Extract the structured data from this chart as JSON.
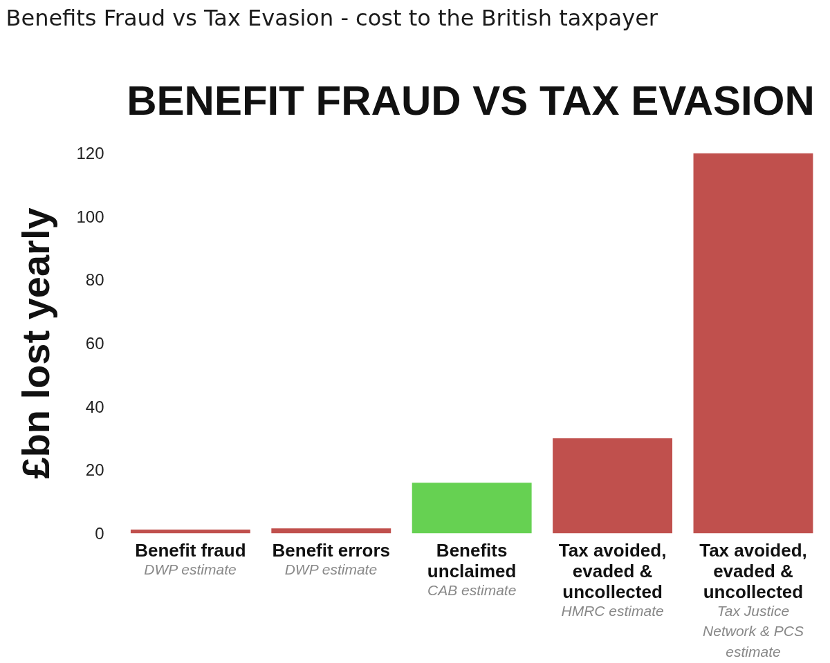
{
  "chart_data": {
    "type": "bar",
    "title": "Benefits Fraud vs Tax Evasion - cost to the British taxpayer",
    "subtitle": "BENEFIT FRAUD VS TAX EVASION",
    "ylabel": "£bn lost yearly",
    "categories": [
      "Benefit fraud",
      "Benefit errors",
      "Benefits unclaimed",
      "Tax avoided, evaded & uncollected",
      "Tax avoided, evaded & uncollected"
    ],
    "values": [
      1.2,
      1.6,
      16,
      30,
      120
    ],
    "colors": [
      "#c0504d",
      "#c0504d",
      "#66d152",
      "#c0504d",
      "#c0504d"
    ],
    "ylim": [
      0,
      120
    ],
    "yticks": [
      0,
      20,
      40,
      60,
      80,
      100,
      120
    ],
    "grid": false,
    "annotations": [
      "DWP estimate",
      "DWP estimate",
      "CAB estimate",
      "HMRC estimate",
      "Tax Justice Network & PCS estimate"
    ]
  }
}
